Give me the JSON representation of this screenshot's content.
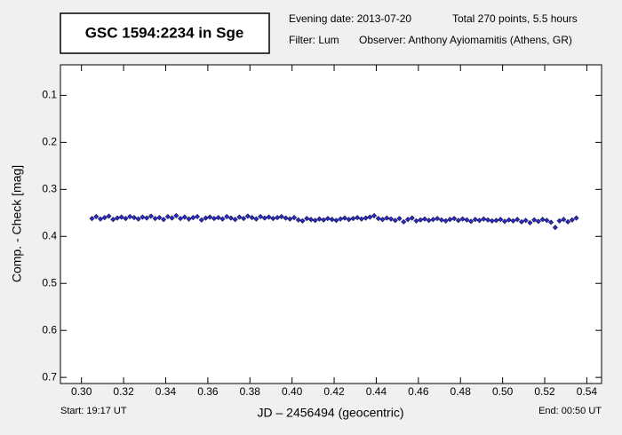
{
  "chart_data": {
    "type": "scatter",
    "title": "GSC 1594:2234 in Sge",
    "evening_date": "Evening date: 2013-07-20",
    "total": "Total 270 points, 5.5 hours",
    "filter": "Filter: Lum",
    "observer": "Observer: Anthony Ayiomamitis (Athens, GR)",
    "x_label": "JD – 2456494  (geocentric)",
    "y_label": "Comp. - Check [mag]",
    "start": "Start: 19:17 UT",
    "end": "End: 00:50 UT",
    "color": "#2a2ad0",
    "y_inverted": true,
    "xlim": [
      0.29,
      0.547
    ],
    "ylim": [
      0.035,
      0.713
    ],
    "xticks": [
      {
        "value": 0.3,
        "label": "0.30"
      },
      {
        "value": 0.32,
        "label": "0.32"
      },
      {
        "value": 0.34,
        "label": "0.34"
      },
      {
        "value": 0.36,
        "label": "0.36"
      },
      {
        "value": 0.38,
        "label": "0.38"
      },
      {
        "value": 0.4,
        "label": "0.40"
      },
      {
        "value": 0.42,
        "label": "0.42"
      },
      {
        "value": 0.44,
        "label": "0.44"
      },
      {
        "value": 0.46,
        "label": "0.46"
      },
      {
        "value": 0.48,
        "label": "0.48"
      },
      {
        "value": 0.5,
        "label": "0.50"
      },
      {
        "value": 0.52,
        "label": "0.52"
      },
      {
        "value": 0.54,
        "label": "0.54"
      }
    ],
    "yticks": [
      0.1,
      0.2,
      0.3,
      0.4,
      0.5,
      0.6,
      0.7
    ],
    "x": [
      0.305,
      0.307,
      0.309,
      0.311,
      0.313,
      0.315,
      0.317,
      0.319,
      0.321,
      0.323,
      0.325,
      0.327,
      0.329,
      0.331,
      0.333,
      0.335,
      0.337,
      0.339,
      0.341,
      0.343,
      0.345,
      0.347,
      0.349,
      0.351,
      0.353,
      0.355,
      0.357,
      0.359,
      0.361,
      0.363,
      0.365,
      0.367,
      0.369,
      0.371,
      0.373,
      0.375,
      0.377,
      0.379,
      0.381,
      0.383,
      0.385,
      0.387,
      0.389,
      0.391,
      0.393,
      0.395,
      0.397,
      0.399,
      0.401,
      0.403,
      0.405,
      0.407,
      0.409,
      0.411,
      0.413,
      0.415,
      0.417,
      0.419,
      0.421,
      0.423,
      0.425,
      0.427,
      0.429,
      0.431,
      0.433,
      0.435,
      0.437,
      0.439,
      0.441,
      0.443,
      0.445,
      0.447,
      0.449,
      0.451,
      0.453,
      0.455,
      0.457,
      0.459,
      0.461,
      0.463,
      0.465,
      0.467,
      0.469,
      0.471,
      0.473,
      0.475,
      0.477,
      0.479,
      0.481,
      0.483,
      0.485,
      0.487,
      0.489,
      0.491,
      0.493,
      0.495,
      0.497,
      0.499,
      0.501,
      0.503,
      0.505,
      0.507,
      0.509,
      0.511,
      0.513,
      0.515,
      0.517,
      0.519,
      0.521,
      0.523,
      0.525,
      0.527,
      0.529,
      0.531,
      0.533,
      0.535
    ],
    "values": [
      0.362,
      0.358,
      0.363,
      0.36,
      0.357,
      0.364,
      0.361,
      0.359,
      0.362,
      0.358,
      0.36,
      0.363,
      0.359,
      0.361,
      0.357,
      0.362,
      0.36,
      0.364,
      0.358,
      0.361,
      0.356,
      0.362,
      0.359,
      0.363,
      0.36,
      0.358,
      0.365,
      0.361,
      0.359,
      0.362,
      0.36,
      0.363,
      0.358,
      0.361,
      0.364,
      0.359,
      0.362,
      0.357,
      0.36,
      0.363,
      0.358,
      0.361,
      0.359,
      0.362,
      0.36,
      0.358,
      0.361,
      0.363,
      0.36,
      0.365,
      0.367,
      0.362,
      0.364,
      0.366,
      0.363,
      0.365,
      0.362,
      0.364,
      0.366,
      0.363,
      0.361,
      0.364,
      0.362,
      0.36,
      0.363,
      0.361,
      0.359,
      0.356,
      0.362,
      0.364,
      0.361,
      0.363,
      0.366,
      0.362,
      0.369,
      0.364,
      0.361,
      0.367,
      0.365,
      0.363,
      0.366,
      0.364,
      0.362,
      0.365,
      0.367,
      0.364,
      0.362,
      0.366,
      0.363,
      0.365,
      0.368,
      0.364,
      0.366,
      0.363,
      0.365,
      0.367,
      0.366,
      0.364,
      0.368,
      0.365,
      0.367,
      0.364,
      0.369,
      0.366,
      0.371,
      0.365,
      0.368,
      0.364,
      0.366,
      0.37,
      0.381,
      0.367,
      0.364,
      0.369,
      0.365,
      0.361
    ]
  }
}
